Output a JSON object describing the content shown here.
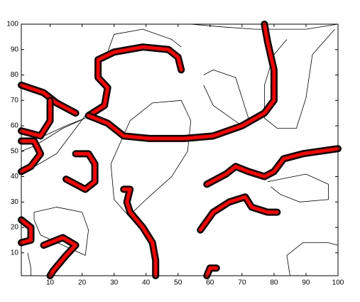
{
  "chart_data": {
    "type": "contour",
    "xlim": [
      1,
      100
    ],
    "ylim": [
      1,
      100
    ],
    "xticks": [
      10,
      20,
      30,
      40,
      50,
      60,
      70,
      80,
      90,
      100
    ],
    "yticks": [
      10,
      20,
      30,
      40,
      50,
      60,
      70,
      80,
      90,
      100
    ],
    "line_color": "#000000",
    "fill_color": "#ff0000",
    "curves": [
      {
        "x": [
          28,
          30,
          39,
          48,
          51
        ],
        "y": [
          89,
          96,
          98,
          94,
          91
        ]
      },
      {
        "x": [
          54,
          63,
          74,
          90,
          100
        ],
        "y": [
          100,
          99,
          98,
          98,
          100
        ]
      },
      {
        "x": [
          99,
          92,
          90,
          87,
          81,
          77,
          77,
          80,
          84
        ],
        "y": [
          98,
          88,
          71,
          59,
          59,
          63,
          76,
          88,
          94
        ]
      },
      {
        "x": [
          42,
          30,
          29,
          35,
          42,
          51,
          54,
          53,
          48,
          40,
          35
        ],
        "y": [
          14,
          31,
          45,
          62,
          69,
          70,
          62,
          50,
          40,
          31,
          25
        ]
      },
      {
        "x": [
          1,
          12,
          21
        ],
        "y": [
          41,
          49,
          64
        ]
      },
      {
        "x": [
          1,
          8,
          15,
          21,
          14,
          5,
          1
        ],
        "y": [
          53,
          56,
          60,
          63,
          59,
          52,
          50
        ]
      },
      {
        "x": [
          5,
          12,
          20,
          22,
          21,
          14,
          7,
          5,
          5
        ],
        "y": [
          26,
          28,
          26,
          19,
          9,
          13,
          17,
          23,
          26
        ]
      },
      {
        "x": [
          78,
          90,
          97,
          97,
          88,
          82,
          79
        ],
        "y": [
          38,
          41,
          37,
          31,
          30,
          33,
          36
        ]
      },
      {
        "x": [
          85,
          84,
          89,
          97,
          100
        ],
        "y": [
          1,
          9,
          14,
          14,
          13
        ]
      },
      {
        "x": [
          3,
          4,
          4
        ],
        "y": [
          10,
          4,
          1
        ]
      },
      {
        "x": [
          58,
          61,
          68,
          72,
          70,
          61,
          58
        ],
        "y": [
          80,
          82,
          79,
          63,
          60,
          68,
          76
        ]
      }
    ],
    "bands": [
      {
        "x": [
          51,
          50,
          47,
          39,
          30,
          25,
          25,
          28,
          27,
          22
        ],
        "y": [
          82,
          87,
          90,
          91,
          89,
          86,
          79,
          75,
          68,
          64
        ]
      },
      {
        "x": [
          22,
          28,
          33,
          41,
          52,
          61,
          70,
          77,
          80,
          80,
          78,
          77
        ],
        "y": [
          64,
          61,
          56,
          55,
          55,
          56,
          60,
          65,
          70,
          82,
          93,
          100
        ]
      },
      {
        "x": [
          1,
          8,
          12,
          18
        ],
        "y": [
          76,
          73,
          69,
          65
        ]
      },
      {
        "x": [
          10,
          10,
          7,
          1
        ],
        "y": [
          70,
          62,
          56,
          58
        ]
      },
      {
        "x": [
          1,
          5,
          7,
          4,
          1
        ],
        "y": [
          54,
          54,
          49,
          44,
          42
        ]
      },
      {
        "x": [
          18,
          22,
          24,
          24,
          21,
          15
        ],
        "y": [
          49,
          49,
          45,
          38,
          35,
          39
        ]
      },
      {
        "x": [
          59,
          65,
          68,
          72,
          77,
          80,
          83,
          89,
          100
        ],
        "y": [
          37,
          41,
          44,
          42,
          40,
          42,
          47,
          49,
          51
        ]
      },
      {
        "x": [
          33,
          35,
          34,
          35,
          39,
          42,
          43,
          43
        ],
        "y": [
          35,
          35,
          30,
          26,
          20,
          14,
          7,
          1
        ]
      },
      {
        "x": [
          57,
          61,
          66,
          71,
          73,
          78,
          81
        ],
        "y": [
          19,
          26,
          30,
          32,
          28,
          26,
          26
        ]
      },
      {
        "x": [
          1,
          4,
          4,
          1
        ],
        "y": [
          23,
          20,
          15,
          14
        ]
      },
      {
        "x": [
          8,
          14,
          18,
          15,
          11,
          10
        ],
        "y": [
          13,
          16,
          13,
          9,
          3,
          1
        ]
      },
      {
        "x": [
          59,
          60,
          62
        ],
        "y": [
          1,
          4,
          4
        ]
      }
    ]
  }
}
